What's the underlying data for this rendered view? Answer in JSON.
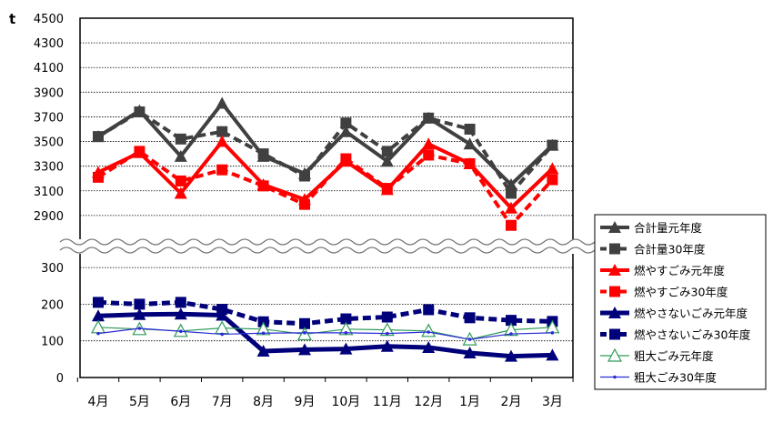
{
  "chart_data": {
    "type": "line",
    "unit_label": "t",
    "categories": [
      "4月",
      "5月",
      "6月",
      "7月",
      "8月",
      "9月",
      "10月",
      "11月",
      "12月",
      "1月",
      "2月",
      "3月"
    ],
    "axis_break": true,
    "upper_axis": {
      "ylim": [
        2700,
        4500
      ],
      "ticks": [
        2900,
        3100,
        3300,
        3500,
        3700,
        3900,
        4100,
        4300,
        4500
      ]
    },
    "lower_axis": {
      "ylim": [
        0,
        340
      ],
      "ticks": [
        0,
        100,
        200,
        300
      ]
    },
    "grid": "horizontal dotted",
    "legend_position": "right",
    "series": [
      {
        "name": "合計量元年度",
        "panel": "upper",
        "color": "#404040",
        "dash": false,
        "marker": "triangle",
        "width": 4,
        "values": [
          3540,
          3750,
          3380,
          3810,
          3380,
          3240,
          3580,
          3340,
          3690,
          3480,
          3150,
          3470
        ]
      },
      {
        "name": "合計量30年度",
        "panel": "upper",
        "color": "#404040",
        "dash": true,
        "marker": "square",
        "width": 4,
        "values": [
          3540,
          3740,
          3520,
          3580,
          3400,
          3220,
          3650,
          3420,
          3690,
          3600,
          3080,
          3470
        ]
      },
      {
        "name": "燃やすごみ元年度",
        "panel": "upper",
        "color": "#ff0000",
        "dash": false,
        "marker": "triangle",
        "width": 4,
        "values": [
          3250,
          3410,
          3080,
          3500,
          3150,
          3030,
          3340,
          3110,
          3480,
          3320,
          2960,
          3280
        ]
      },
      {
        "name": "燃やすごみ30年度",
        "panel": "upper",
        "color": "#ff0000",
        "dash": true,
        "marker": "square",
        "width": 4,
        "values": [
          3210,
          3420,
          3180,
          3270,
          3140,
          2990,
          3360,
          3120,
          3390,
          3320,
          2820,
          3190
        ]
      },
      {
        "name": "燃やさないごみ元年度",
        "panel": "lower",
        "color": "#00007a",
        "dash": false,
        "marker": "triangle",
        "width": 5,
        "values": [
          168,
          172,
          173,
          170,
          72,
          76,
          78,
          85,
          82,
          67,
          58,
          61
        ]
      },
      {
        "name": "燃やさないごみ30年度",
        "panel": "lower",
        "color": "#00007a",
        "dash": true,
        "marker": "square",
        "width": 5,
        "values": [
          205,
          200,
          205,
          186,
          152,
          147,
          160,
          165,
          185,
          163,
          156,
          153
        ]
      },
      {
        "name": "粗大ごみ元年度",
        "panel": "lower",
        "color": "#2e9a5a",
        "dash": false,
        "marker": "triangle-open",
        "width": 1.2,
        "values": [
          137,
          132,
          127,
          135,
          132,
          118,
          132,
          130,
          127,
          104,
          130,
          137
        ]
      },
      {
        "name": "粗大ごみ30年度",
        "panel": "lower",
        "color": "#2b2bd6",
        "dash": false,
        "marker": "dot",
        "width": 1.2,
        "values": [
          120,
          134,
          126,
          118,
          121,
          122,
          122,
          120,
          124,
          104,
          119,
          122
        ]
      }
    ]
  }
}
